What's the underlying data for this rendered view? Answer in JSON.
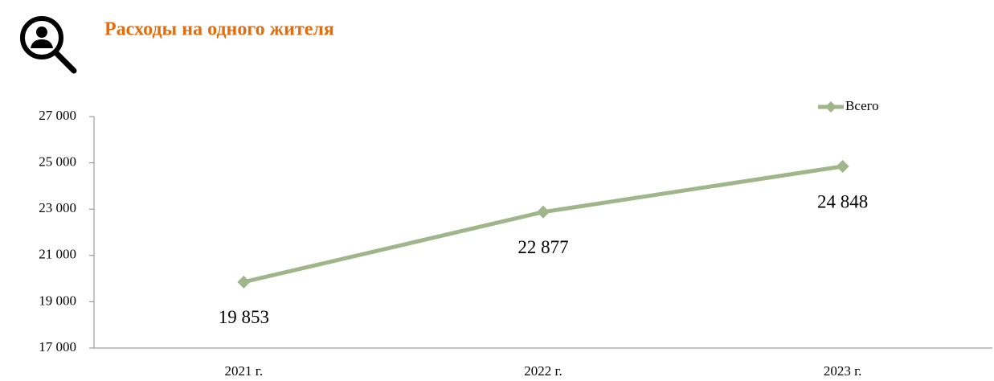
{
  "chart_data": {
    "type": "line",
    "title": "Расходы на одного жителя",
    "categories": [
      "2021 г.",
      "2022 г.",
      "2023 г."
    ],
    "series": [
      {
        "name": "Всего",
        "color": "#9fb58a",
        "values": [
          19853,
          22877,
          24848
        ],
        "value_labels": [
          "19 853",
          "22 877",
          "24 848"
        ]
      }
    ],
    "ylim": [
      17000,
      27000
    ],
    "yticks": [
      {
        "value": 17000,
        "label": "17 000"
      },
      {
        "value": 19000,
        "label": "19 000"
      },
      {
        "value": 21000,
        "label": "21 000"
      },
      {
        "value": 23000,
        "label": "23 000"
      },
      {
        "value": 25000,
        "label": "25 000"
      },
      {
        "value": 27000,
        "label": "27 000"
      }
    ],
    "legend": "top-right"
  }
}
